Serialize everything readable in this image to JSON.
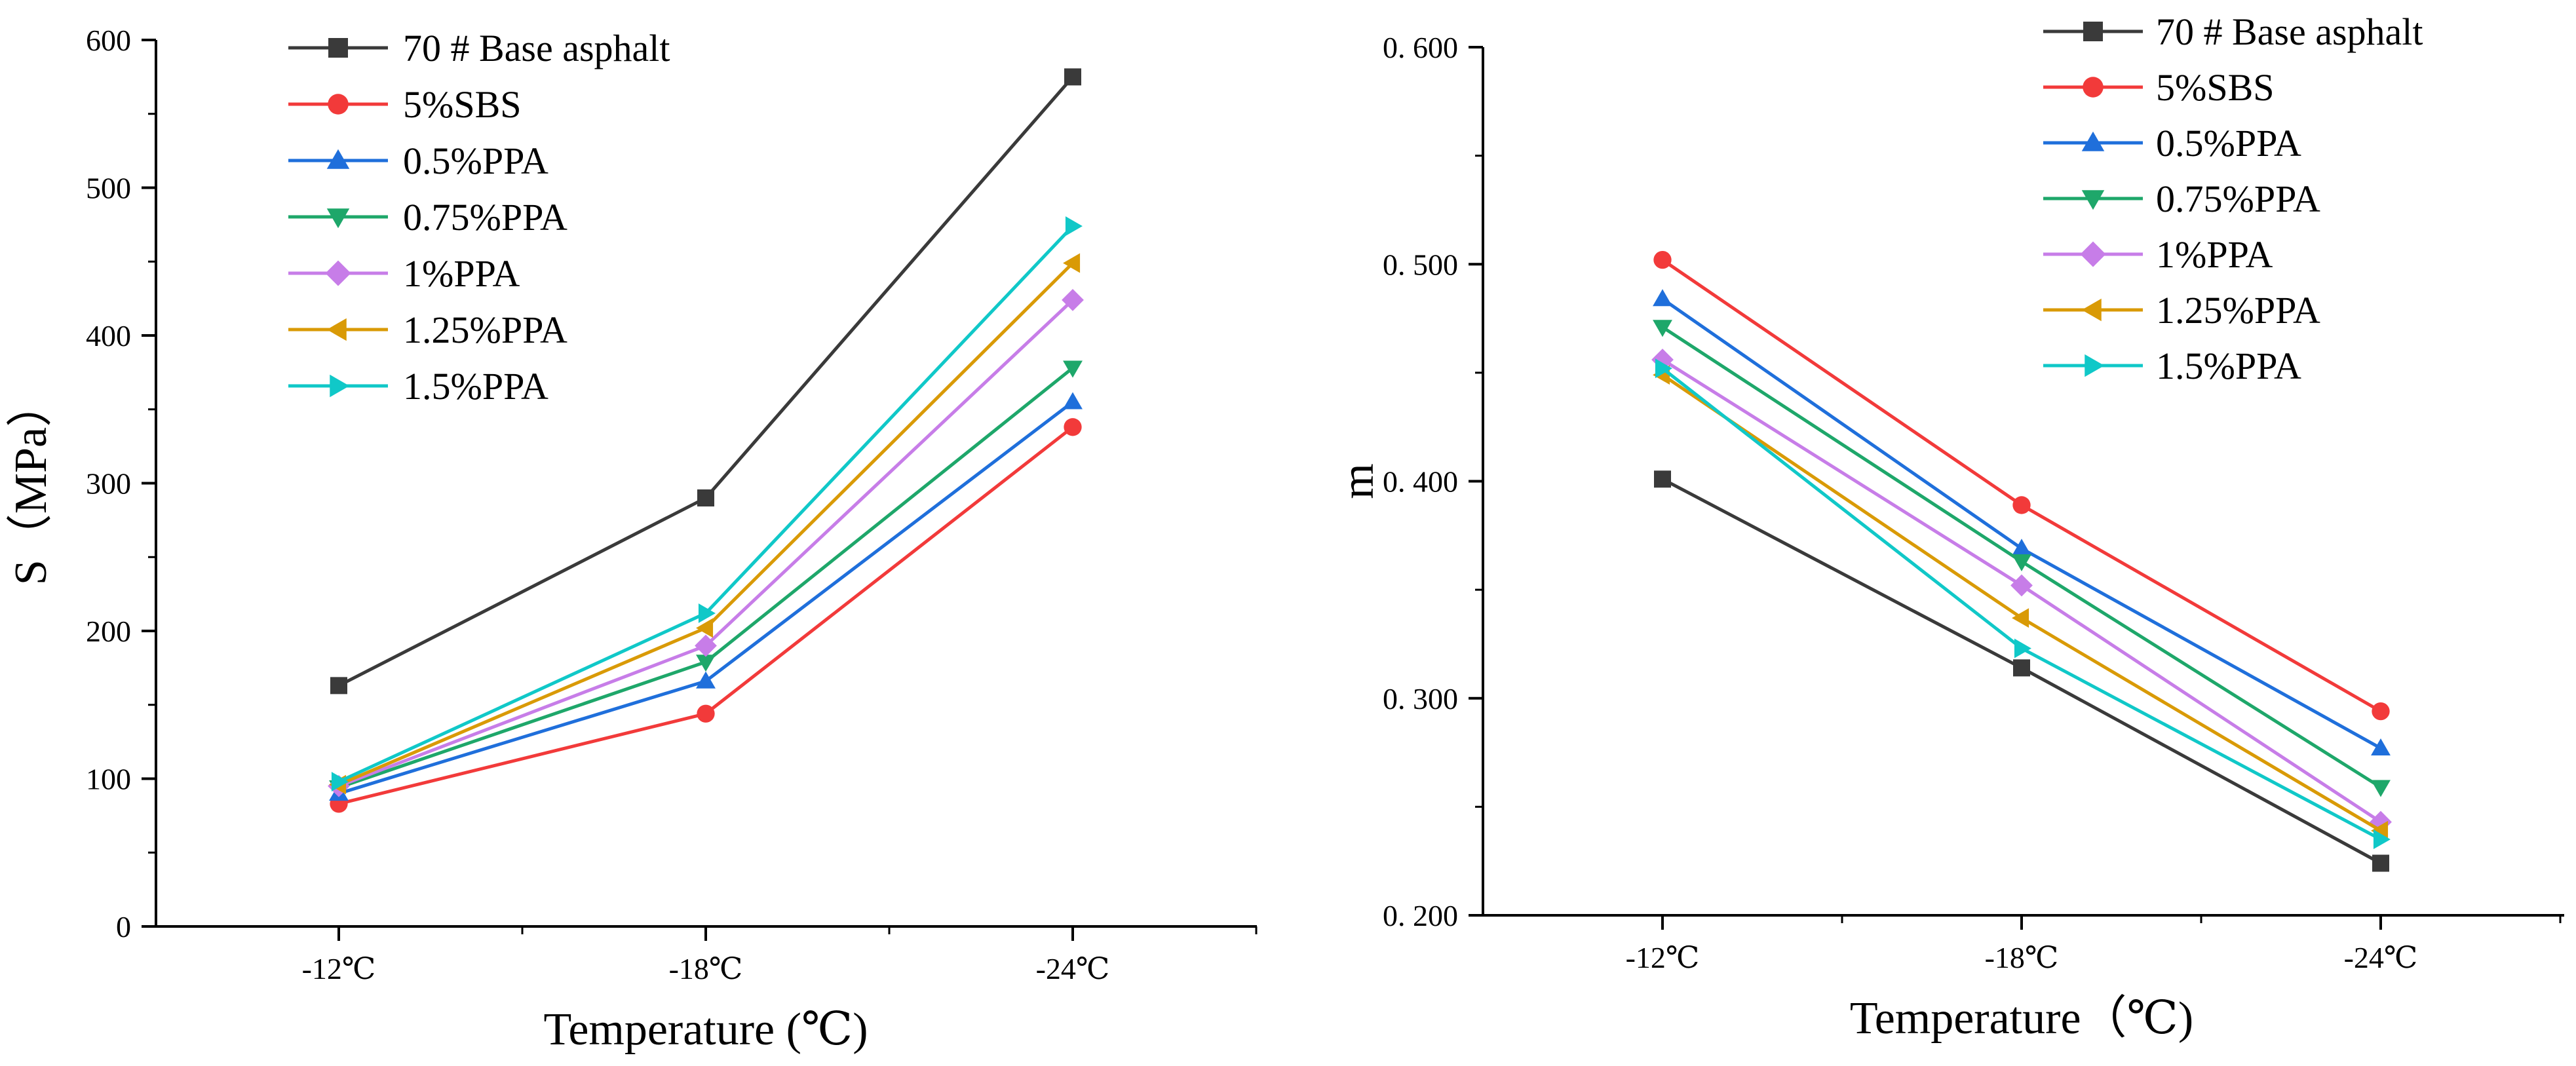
{
  "chart_data": [
    {
      "type": "line",
      "title": "",
      "xlabel": "Temperature (℃)",
      "ylabel": "S（MPa）",
      "categories": [
        "-12℃",
        "-18℃",
        "-24℃"
      ],
      "ylim": [
        0,
        600
      ],
      "yticks": [
        "0",
        "100",
        "200",
        "300",
        "400",
        "500",
        "600"
      ],
      "grid": false,
      "legend": "top-left",
      "series": [
        {
          "name": "70 # Base asphalt",
          "marker": "square",
          "color": "#3a3a3a",
          "values": [
            163,
            290,
            575
          ]
        },
        {
          "name": "5%SBS",
          "marker": "circle",
          "color": "#f23a3a",
          "values": [
            83,
            144,
            338
          ]
        },
        {
          "name": "0.5%PPA",
          "marker": "triangle-up",
          "color": "#1f6fdb",
          "values": [
            90,
            166,
            355
          ]
        },
        {
          "name": "0.75%PPA",
          "marker": "triangle-down",
          "color": "#1ea76a",
          "values": [
            94,
            179,
            378
          ]
        },
        {
          "name": "1%PPA",
          "marker": "diamond",
          "color": "#c77de8",
          "values": [
            95,
            190,
            424
          ]
        },
        {
          "name": "1.25%PPA",
          "marker": "triangle-left",
          "color": "#d99a06",
          "values": [
            96,
            202,
            449
          ]
        },
        {
          "name": "1.5%PPA",
          "marker": "triangle-right",
          "color": "#10c8c8",
          "values": [
            98,
            212,
            474
          ]
        }
      ]
    },
    {
      "type": "line",
      "title": "",
      "xlabel": "Temperature（℃)",
      "ylabel": "m",
      "categories": [
        "-12℃",
        "-18℃",
        "-24℃"
      ],
      "ylim": [
        0.2,
        0.6
      ],
      "yticks": [
        "0. 200",
        "0. 300",
        "0. 400",
        "0. 500",
        "0. 600"
      ],
      "grid": false,
      "legend": "top-right",
      "series": [
        {
          "name": "70 # Base asphalt",
          "marker": "square",
          "color": "#3a3a3a",
          "values": [
            0.401,
            0.314,
            0.224
          ]
        },
        {
          "name": "5%SBS",
          "marker": "circle",
          "color": "#f23a3a",
          "values": [
            0.502,
            0.389,
            0.294
          ]
        },
        {
          "name": "0.5%PPA",
          "marker": "triangle-up",
          "color": "#1f6fdb",
          "values": [
            0.484,
            0.369,
            0.277
          ]
        },
        {
          "name": "0.75%PPA",
          "marker": "triangle-down",
          "color": "#1ea76a",
          "values": [
            0.471,
            0.363,
            0.259
          ]
        },
        {
          "name": "1%PPA",
          "marker": "diamond",
          "color": "#c77de8",
          "values": [
            0.456,
            0.352,
            0.243
          ]
        },
        {
          "name": "1.25%PPA",
          "marker": "triangle-left",
          "color": "#d99a06",
          "values": [
            0.449,
            0.337,
            0.239
          ]
        },
        {
          "name": "1.5%PPA",
          "marker": "triangle-right",
          "color": "#10c8c8",
          "values": [
            0.452,
            0.323,
            0.235
          ]
        }
      ]
    }
  ]
}
